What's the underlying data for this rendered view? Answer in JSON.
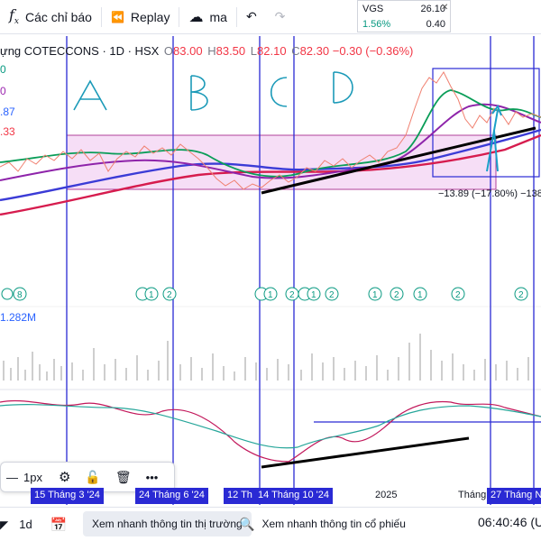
{
  "toolbar": {
    "indicators_label": "Các chỉ báo",
    "replay_label": "Replay",
    "cloud_label": "ma"
  },
  "ticker": {
    "symbol": "VGS",
    "price": "26.10",
    "percent": "1.56%",
    "change": "0.40"
  },
  "legend": {
    "title": "ựng COTECCONS · 1D · HSX",
    "open_label": "O",
    "open": "83.00",
    "high_label": "H",
    "high": "83.50",
    "low_label": "L",
    "low": "82.10",
    "close_label": "C",
    "close": "82.30",
    "change": "−0.30 (−0.36%)"
  },
  "left_values": [
    {
      "text": "0",
      "color": "#089981"
    },
    {
      "text": "0",
      "color": "#9c27b0"
    },
    {
      "text": ".87",
      "color": "#2962ff"
    },
    {
      "text": ".33",
      "color": "#f23645"
    }
  ],
  "handwritten_labels": [
    "A",
    "B",
    "C",
    "D"
  ],
  "measure_label": "−13.89 (−17.80%) −138",
  "volume_label": "1.282M",
  "event_markers": [
    "8",
    "1",
    "2",
    "1",
    "2",
    "1",
    "2",
    "1",
    "2",
    "1",
    "2",
    "2"
  ],
  "float_toolbar": {
    "width_label": "1px"
  },
  "time_axis": [
    {
      "label": "15 Tháng 3 '24",
      "highlight": true
    },
    {
      "label": "24 Tháng 6 '24",
      "highlight": true
    },
    {
      "label": "12 Th",
      "highlight": true
    },
    {
      "label": "14 Tháng 10 '24",
      "highlight": true
    },
    {
      "label": "2025",
      "highlight": false
    },
    {
      "label": "Tháng",
      "highlight": false
    },
    {
      "label": "27 Tháng N",
      "highlight": true
    }
  ],
  "bottom": {
    "interval": "1d",
    "quick_view_label": "Xem nhanh thông tin thị trường",
    "stock_search_placeholder": "Xem nhanh thông tin cổ phiếu",
    "clock": "06:40:46 (U"
  },
  "colors": {
    "accent": "#2a2ad4",
    "green": "#089981",
    "red": "#f23645",
    "purple_zone": "#e1bee7",
    "magenta_border": "#c2185b"
  }
}
